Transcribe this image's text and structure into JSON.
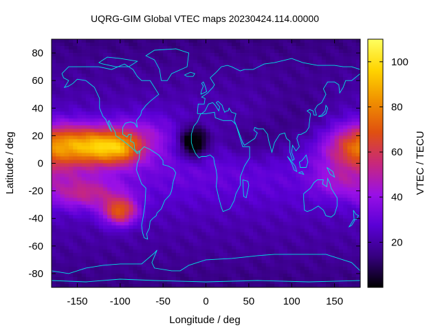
{
  "chart_data": {
    "type": "heatmap",
    "title": "UQRG-GIM Global VTEC maps 20230424.114.00000",
    "xlabel": "Longitude / deg",
    "ylabel": "Latitude / deg",
    "colorbar_label": "VTEC / TECU",
    "xlim": [
      -180,
      180
    ],
    "ylim": [
      -90,
      90
    ],
    "xticks": [
      -150,
      -100,
      -50,
      0,
      50,
      100,
      150
    ],
    "xtick_labels": [
      "-150",
      "-100",
      "-50",
      "0",
      "50",
      "100",
      "150"
    ],
    "yticks": [
      80,
      60,
      40,
      20,
      0,
      -20,
      -40,
      -60,
      -80
    ],
    "ytick_labels": [
      "80",
      "60",
      "40",
      "20",
      "0",
      "-20",
      "-40",
      "-60",
      "-80"
    ],
    "cbar_range": [
      0,
      110
    ],
    "cbar_ticks": [
      20,
      40,
      60,
      80,
      100
    ],
    "cbar_tick_labels": [
      "20",
      "40",
      "60",
      "80",
      "100"
    ],
    "colormap": [
      "#000000",
      "#36007f",
      "#5a00d6",
      "#9a10e6",
      "#c8287a",
      "#e05010",
      "#f09000",
      "#ffd400",
      "#ffff60"
    ],
    "grid": false,
    "coastline_color": "#00e5e5",
    "grid_resolution_deg": {
      "lon": 5,
      "lat": 2.5
    },
    "features": [
      {
        "lon": -165,
        "lat": 14,
        "sx": 30,
        "sy": 10,
        "amp": 40
      },
      {
        "lon": -120,
        "lat": 12,
        "sx": 22,
        "sy": 9,
        "amp": 45
      },
      {
        "lon": -95,
        "lat": 10,
        "sx": 16,
        "sy": 8,
        "amp": 25
      },
      {
        "lon": -140,
        "lat": -22,
        "sx": 30,
        "sy": 8,
        "amp": 25
      },
      {
        "lon": -100,
        "lat": -35,
        "sx": 14,
        "sy": 7,
        "amp": 45
      },
      {
        "lon": -75,
        "lat": 20,
        "sx": 25,
        "sy": 10,
        "amp": 15
      },
      {
        "lon": 175,
        "lat": 5,
        "sx": 30,
        "sy": 14,
        "amp": 18
      },
      {
        "lon": 150,
        "lat": -15,
        "sx": 18,
        "sy": 7,
        "amp": 10
      },
      {
        "lon": -15,
        "lat": 15,
        "sx": 12,
        "sy": 8,
        "amp": -35
      },
      {
        "lon": 50,
        "lat": 15,
        "sx": 35,
        "sy": 12,
        "amp": -12
      },
      {
        "lon": 110,
        "lat": 25,
        "sx": 30,
        "sy": 20,
        "amp": -8
      }
    ]
  }
}
